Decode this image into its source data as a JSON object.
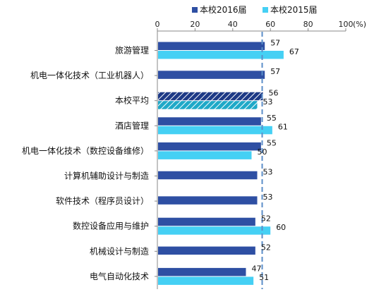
{
  "chart_data": {
    "type": "bar",
    "orientation": "horizontal",
    "title": "",
    "xlabel": "",
    "ylabel": "",
    "unit_label": "(%)",
    "xlim": [
      0,
      100
    ],
    "xticks": [
      0,
      20,
      40,
      60,
      80,
      100
    ],
    "grid": false,
    "legend_position": "top-right",
    "reference_line": {
      "value": 56,
      "style": "dashed",
      "color": "#5b8ec9"
    },
    "categories": [
      "旅游管理",
      "机电一体化技术（工业机器人）",
      "本校平均",
      "酒店管理",
      "机电一体化技术（数控设备维修）",
      "计算机辅助设计与制造",
      "软件技术（程序员设计）",
      "数控设备应用与维护",
      "机械设计与制造",
      "电气自动化技术"
    ],
    "hatched_category_index": 2,
    "series": [
      {
        "name": "本校2016届",
        "color": "#2e4fa3",
        "values": [
          57,
          57,
          56,
          55,
          55,
          53,
          53,
          52,
          52,
          47
        ]
      },
      {
        "name": "本校2015届",
        "color": "#45d0f4",
        "values": [
          67,
          null,
          53,
          61,
          50,
          null,
          null,
          60,
          null,
          51
        ]
      }
    ]
  }
}
